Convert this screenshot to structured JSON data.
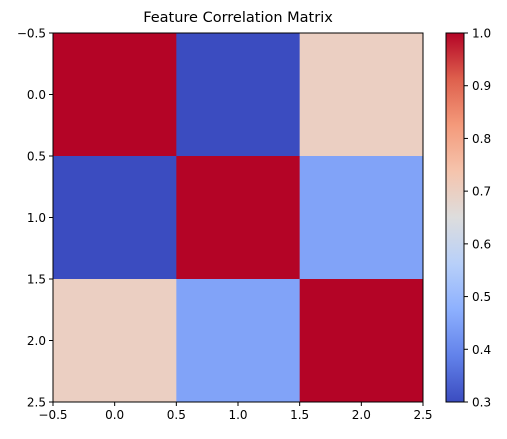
{
  "chart_data": {
    "type": "heatmap",
    "title": "Feature Correlation Matrix",
    "xlabel": "",
    "ylabel": "",
    "xlim": [
      -0.5,
      2.5
    ],
    "ylim": [
      2.5,
      -0.5
    ],
    "x_ticks": [
      "−0.5",
      "0.0",
      "0.5",
      "1.0",
      "1.5",
      "2.0",
      "2.5"
    ],
    "y_ticks": [
      "−0.5",
      "0.0",
      "0.5",
      "1.0",
      "1.5",
      "2.0",
      "2.5"
    ],
    "matrix": [
      [
        1.0,
        0.3,
        0.7
      ],
      [
        0.3,
        1.0,
        0.45
      ],
      [
        0.7,
        0.45,
        1.0
      ]
    ],
    "colormap": "coolwarm",
    "colorbar": {
      "min": 0.3,
      "max": 1.0,
      "ticks": [
        "0.3",
        "0.4",
        "0.5",
        "0.6",
        "0.7",
        "0.8",
        "0.9",
        "1.0"
      ]
    },
    "grid": false,
    "legend": "none"
  }
}
